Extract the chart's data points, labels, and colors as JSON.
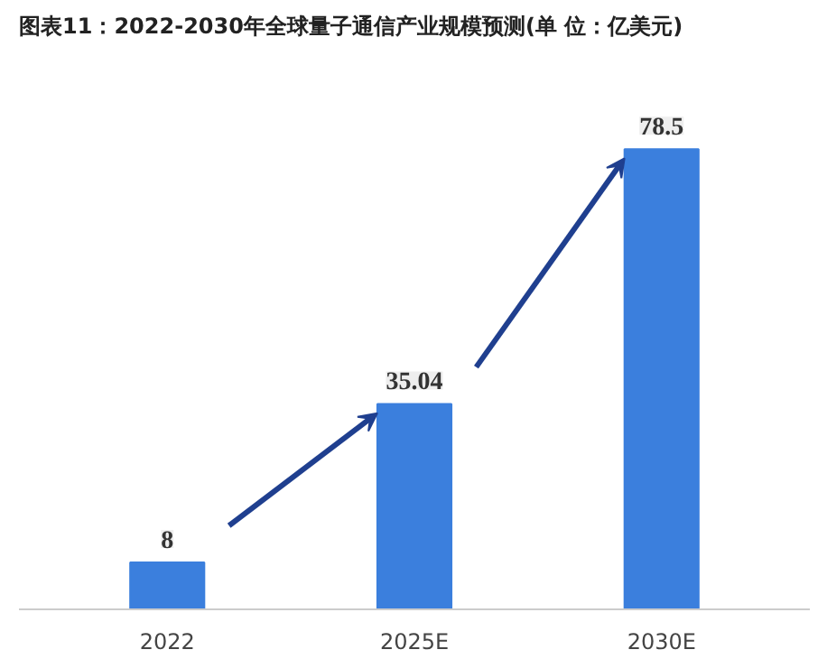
{
  "chart_data": {
    "type": "bar",
    "title": "图表11：2022-2030年全球量子通信产业规模预测(单 位：亿美元)",
    "categories": [
      "2022",
      "2025E",
      "2030E"
    ],
    "values": [
      8,
      35.04,
      78.5
    ],
    "color": "#3b7fdd",
    "data_labels": true
  }
}
